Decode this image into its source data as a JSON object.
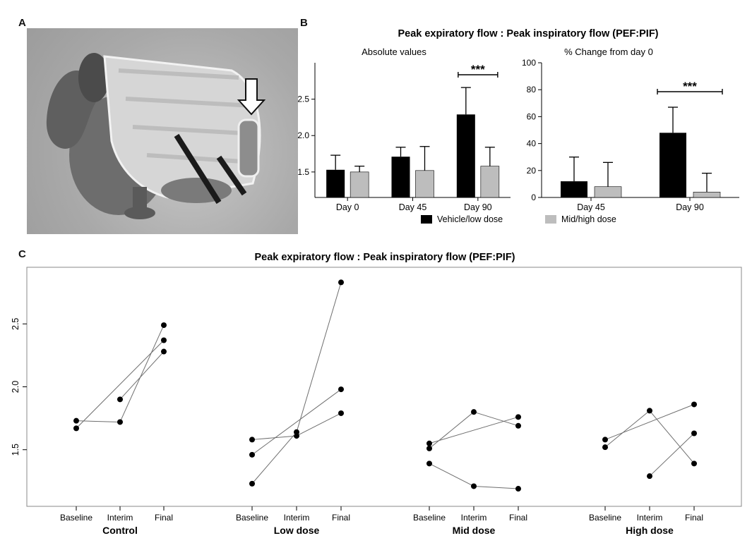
{
  "panels": {
    "a": "A",
    "b": "B",
    "c": "C"
  },
  "colors": {
    "vehicle_low": "#000000",
    "mid_high": "#bdbdbd",
    "line": "#6e6e6e",
    "point": "#000000",
    "frame": "#8a8a8a"
  },
  "legend": {
    "vehicle_low": "Vehicle/low dose",
    "mid_high": "Mid/high dose"
  },
  "chart_data": [
    {
      "id": "abs",
      "type": "bar",
      "figure_title": "Peak expiratory flow : Peak inspiratory flow (PEF:PIF)",
      "title": "Absolute values",
      "categories": [
        "Day 0",
        "Day 45",
        "Day 90"
      ],
      "yticks": [
        1.5,
        2.0,
        2.5
      ],
      "ylim": [
        1.15,
        3.0
      ],
      "series": [
        {
          "name": "Vehicle/low dose",
          "values": [
            1.53,
            1.71,
            2.29
          ],
          "errors": [
            0.2,
            0.13,
            0.37
          ]
        },
        {
          "name": "Mid/high dose",
          "values": [
            1.5,
            1.52,
            1.58
          ],
          "errors": [
            0.08,
            0.33,
            0.26
          ]
        }
      ],
      "significance": {
        "label": "***",
        "category": "Day 90"
      }
    },
    {
      "id": "pct",
      "type": "bar",
      "title": "% Change from day 0",
      "categories": [
        "Day 45",
        "Day 90"
      ],
      "yticks": [
        0,
        20,
        40,
        60,
        80,
        100
      ],
      "ylim": [
        0,
        100
      ],
      "series": [
        {
          "name": "Vehicle/low dose",
          "values": [
            12,
            48
          ],
          "errors": [
            18,
            19
          ]
        },
        {
          "name": "Mid/high dose",
          "values": [
            8,
            4
          ],
          "errors": [
            18,
            14
          ]
        }
      ],
      "significance": {
        "label": "***",
        "category": "Day 90"
      }
    },
    {
      "id": "c",
      "type": "line",
      "title": "Peak expiratory flow : Peak inspiratory flow (PEF:PIF)",
      "timepoints": [
        "Baseline",
        "Interim",
        "Final"
      ],
      "yticks": [
        1.5,
        2.0,
        2.5
      ],
      "ylim": [
        1.05,
        2.95
      ],
      "groups": [
        {
          "name": "Control",
          "subjects": [
            [
              1.73,
              1.72,
              2.49
            ],
            [
              1.67,
              null,
              2.37
            ],
            [
              null,
              1.9,
              2.28
            ]
          ]
        },
        {
          "name": "Low dose",
          "subjects": [
            [
              1.58,
              1.61,
              1.79
            ],
            [
              1.46,
              null,
              1.98
            ],
            [
              1.23,
              1.64,
              2.83
            ]
          ]
        },
        {
          "name": "Mid dose",
          "subjects": [
            [
              1.51,
              1.8,
              1.69
            ],
            [
              1.55,
              null,
              1.76
            ],
            [
              1.39,
              1.21,
              1.19
            ]
          ]
        },
        {
          "name": "High dose",
          "subjects": [
            [
              1.58,
              null,
              1.86
            ],
            [
              1.52,
              1.81,
              1.39
            ],
            [
              null,
              1.29,
              1.63
            ]
          ]
        }
      ]
    }
  ]
}
